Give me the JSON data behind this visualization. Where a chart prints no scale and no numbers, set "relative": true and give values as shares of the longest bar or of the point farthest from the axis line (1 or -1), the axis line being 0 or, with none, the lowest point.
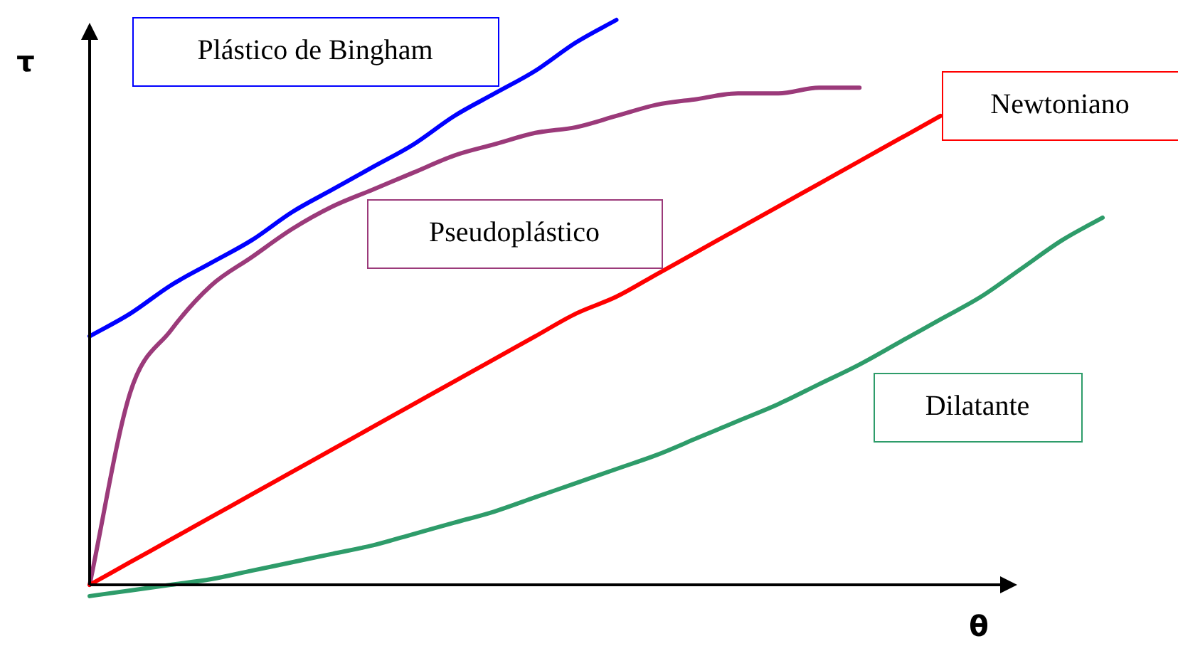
{
  "chart_data": {
    "type": "line",
    "relative": true,
    "xlabel": "θ",
    "ylabel": "τ",
    "legend": false,
    "marker": "none",
    "line_style": "solid",
    "categories": [
      null,
      null,
      null,
      null,
      null,
      null,
      null,
      null,
      null,
      null,
      null,
      null,
      null,
      null,
      null,
      null,
      null,
      null,
      null,
      null,
      null,
      null,
      null,
      null,
      null,
      null
    ],
    "series": [
      {
        "name": "Plástico de Bingham",
        "color": "#0000ff",
        "values": [
          0.44,
          0.48,
          0.53,
          0.57,
          0.61,
          0.66,
          0.7,
          0.74,
          0.78,
          0.83,
          0.87,
          0.91,
          0.96,
          1.0,
          null,
          null,
          null,
          null,
          null,
          null,
          null,
          null,
          null,
          null,
          null,
          null
        ]
      },
      {
        "name": "Newtoniano",
        "color": "#ff0000",
        "values": [
          0,
          0.04,
          0.08,
          0.12,
          0.16,
          0.2,
          0.24,
          0.28,
          0.32,
          0.36,
          0.4,
          0.44,
          0.48,
          0.51,
          0.55,
          0.59,
          0.63,
          0.67,
          0.71,
          0.75,
          0.79,
          0.83,
          null,
          null,
          null,
          null
        ]
      },
      {
        "name": "Pseudoplástico",
        "color": "#9b3a7a",
        "values": [
          0,
          0.34,
          0.45,
          0.53,
          0.58,
          0.63,
          0.67,
          0.7,
          0.73,
          0.76,
          0.78,
          0.8,
          0.81,
          0.83,
          0.85,
          0.86,
          0.87,
          0.87,
          0.88,
          0.88,
          null,
          null,
          null,
          null,
          null,
          null
        ]
      },
      {
        "name": "Dilatante",
        "color": "#2e9c6a",
        "values": [
          -0.02,
          -0.01,
          0,
          0.01,
          0.025,
          0.04,
          0.055,
          0.07,
          0.09,
          0.11,
          0.13,
          0.155,
          0.18,
          0.205,
          0.23,
          0.26,
          0.29,
          0.32,
          0.355,
          0.39,
          0.43,
          0.47,
          0.51,
          0.56,
          0.61,
          0.65
        ]
      }
    ]
  }
}
